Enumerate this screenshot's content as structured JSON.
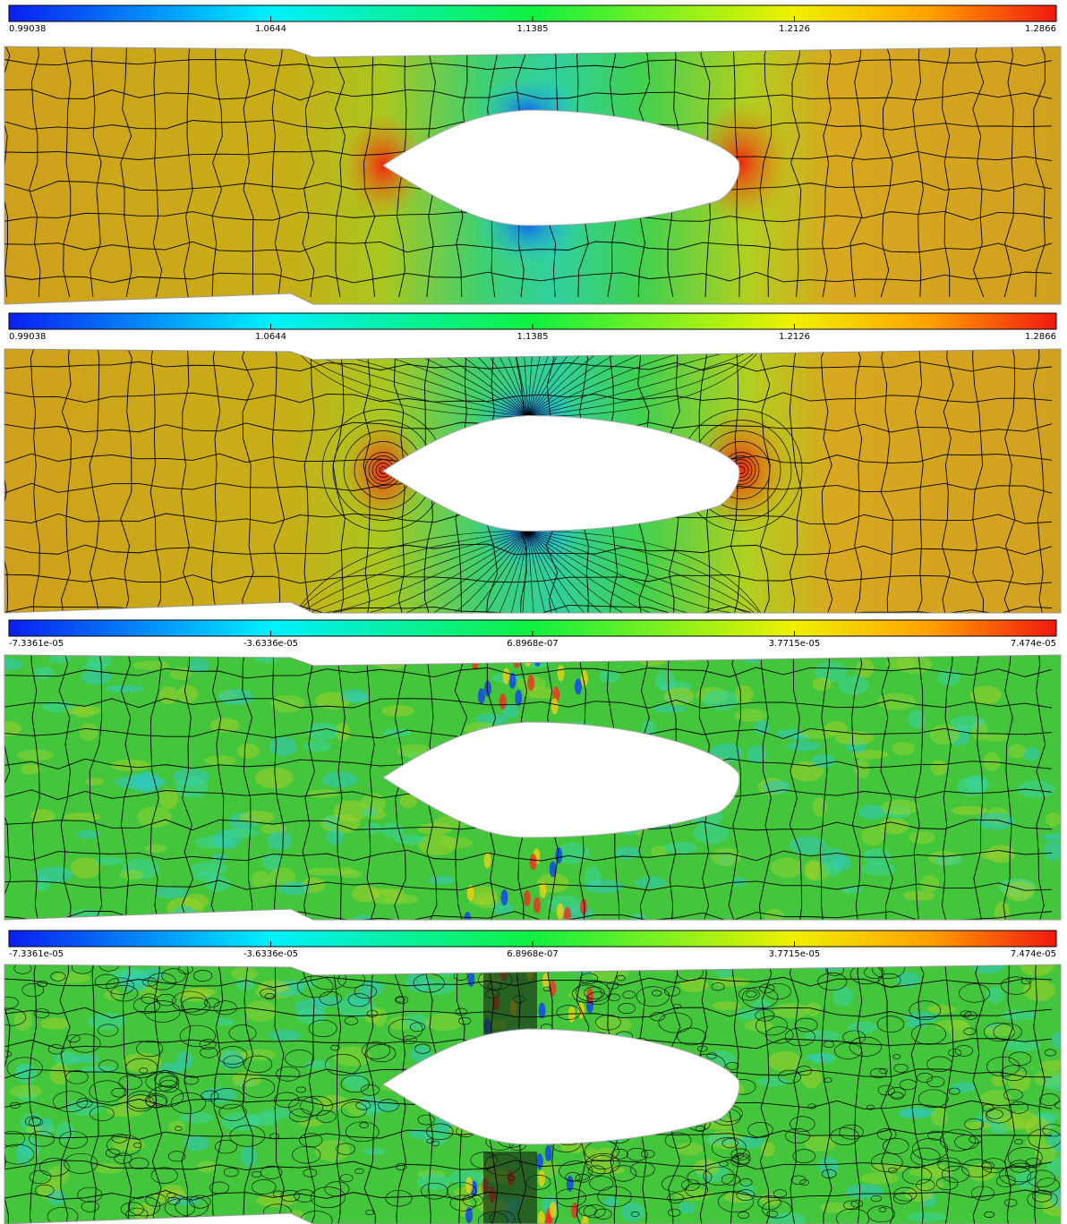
{
  "panels": [
    {
      "colorbar": {
        "ticks": [
          "0.99038",
          "1.0644",
          "1.1385",
          "1.2126",
          "1.2866"
        ]
      }
    },
    {
      "colorbar": {
        "ticks": [
          "0.99038",
          "1.0644",
          "1.1385",
          "1.2126",
          "1.2866"
        ]
      }
    },
    {
      "colorbar": {
        "ticks": [
          "-7.3361e-05",
          "-3.6336e-05",
          "6.8968e-07",
          "3.7715e-05",
          "7.474e-05"
        ]
      }
    },
    {
      "colorbar": {
        "ticks": [
          "-7.3361e-05",
          "-3.6336e-05",
          "6.8968e-07",
          "3.7715e-05",
          "7.474e-05"
        ]
      }
    }
  ]
}
